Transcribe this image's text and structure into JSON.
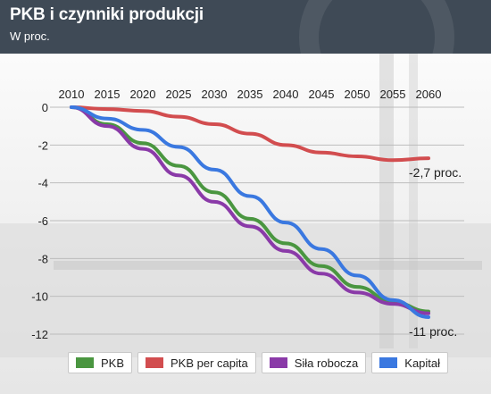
{
  "header": {
    "title": "PKB i czynniki produkcji",
    "subtitle": "W proc."
  },
  "chart_data": {
    "type": "line",
    "x": [
      2010,
      2015,
      2020,
      2025,
      2030,
      2035,
      2040,
      2045,
      2050,
      2055,
      2060
    ],
    "ylim": [
      -12,
      0
    ],
    "yticks": [
      0,
      -2,
      -4,
      -6,
      -8,
      -10,
      -12
    ],
    "grid": true,
    "legend_position": "bottom",
    "series": [
      {
        "name": "PKB",
        "color": "#4a9640",
        "values": [
          0,
          -0.9,
          -1.9,
          -3.1,
          -4.5,
          -5.9,
          -7.2,
          -8.4,
          -9.5,
          -10.3,
          -10.8
        ]
      },
      {
        "name": "PKB per capita",
        "color": "#d24d4f",
        "values": [
          0,
          -0.1,
          -0.2,
          -0.5,
          -0.9,
          -1.4,
          -2.0,
          -2.4,
          -2.6,
          -2.8,
          -2.7
        ]
      },
      {
        "name": "Siła robocza",
        "color": "#8a3aa8",
        "values": [
          0,
          -1.0,
          -2.2,
          -3.6,
          -5.0,
          -6.3,
          -7.6,
          -8.8,
          -9.8,
          -10.4,
          -10.9
        ]
      },
      {
        "name": "Kapitał",
        "color": "#3a78e0",
        "values": [
          0,
          -0.6,
          -1.2,
          -2.1,
          -3.3,
          -4.7,
          -6.1,
          -7.5,
          -8.9,
          -10.2,
          -11.1
        ]
      }
    ],
    "annotations": [
      {
        "text": "-2,7 proc.",
        "series": "PKB per capita"
      },
      {
        "text": "-11 proc.",
        "series": "Kapitał"
      }
    ]
  }
}
